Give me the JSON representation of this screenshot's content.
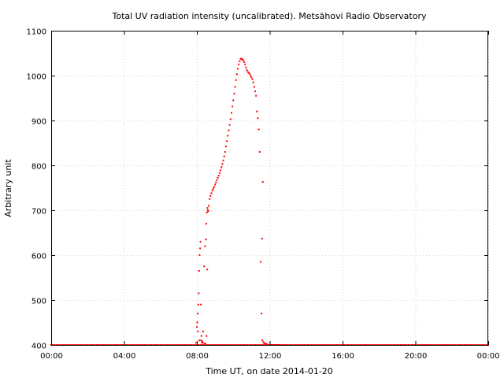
{
  "chart_data": {
    "type": "scatter",
    "title": "Total UV radiation intensity (uncalibrated). Metsähovi Radio Observatory",
    "xlabel": "Time UT, on date 2014-01-20",
    "ylabel": "Arbitrary unit",
    "x_unit": "hours UT",
    "xlim": [
      0,
      24
    ],
    "ylim": [
      400,
      1100
    ],
    "x_ticks": [
      {
        "value": 0,
        "label": "00:00"
      },
      {
        "value": 4,
        "label": "04:00"
      },
      {
        "value": 8,
        "label": "08:00"
      },
      {
        "value": 12,
        "label": "12:00"
      },
      {
        "value": 16,
        "label": "16:00"
      },
      {
        "value": 20,
        "label": "20:00"
      },
      {
        "value": 24,
        "label": "00:00"
      }
    ],
    "y_ticks": [
      {
        "value": 400,
        "label": "400"
      },
      {
        "value": 500,
        "label": "500"
      },
      {
        "value": 600,
        "label": "600"
      },
      {
        "value": 700,
        "label": "700"
      },
      {
        "value": 800,
        "label": "800"
      },
      {
        "value": 900,
        "label": "900"
      },
      {
        "value": 1000,
        "label": "1000"
      },
      {
        "value": 1100,
        "label": "1100"
      }
    ],
    "grid": true,
    "marker_color": "#ff0000",
    "baseline": {
      "y": 400,
      "x_start": 0,
      "x_end": 24,
      "step": 0.1
    },
    "series": [
      {
        "x": [
          7.95,
          8.0,
          8.05,
          8.08,
          8.1,
          8.12,
          8.15,
          8.18,
          8.2,
          8.22,
          8.25,
          8.28,
          8.3,
          8.35,
          8.4,
          8.45,
          8.5,
          8.52,
          8.55,
          8.58,
          8.6,
          8.62,
          8.65,
          8.7,
          8.75,
          8.8,
          8.85,
          8.9,
          8.95,
          9.0,
          9.05,
          9.1,
          9.15,
          9.2,
          9.25,
          9.3,
          9.35,
          9.4,
          9.45,
          9.5,
          9.55,
          9.6,
          9.65,
          9.7,
          9.75,
          9.8,
          9.85,
          9.9,
          9.95,
          10.0,
          10.05,
          10.1,
          10.15,
          10.2,
          10.25,
          10.3,
          10.35,
          10.4,
          10.45,
          10.5,
          10.55,
          10.6,
          10.65,
          10.7,
          10.75,
          10.8,
          10.85,
          10.9,
          10.95,
          11.0,
          11.05,
          11.1,
          11.15,
          11.2,
          11.25,
          11.3,
          11.35,
          11.4,
          11.45,
          11.5,
          11.55,
          11.6,
          11.65,
          11.7,
          11.75,
          11.8,
          11.85,
          11.9,
          11.95,
          12.0,
          12.05,
          12.1,
          12.15,
          12.2,
          12.25,
          12.3,
          12.32,
          12.35,
          12.38,
          12.4,
          12.42,
          12.45,
          12.5,
          12.55,
          12.6,
          11.62,
          11.58,
          8.02,
          8.06,
          8.14,
          8.24,
          8.32,
          8.42,
          8.48,
          8.53,
          8.57
        ],
        "y": [
          405,
          440,
          470,
          490,
          515,
          565,
          600,
          615,
          630,
          490,
          420,
          405,
          408,
          430,
          575,
          620,
          635,
          670,
          695,
          705,
          700,
          698,
          710,
          725,
          732,
          738,
          744,
          748,
          752,
          757,
          762,
          767,
          772,
          777,
          783,
          789,
          796,
          803,
          811,
          820,
          830,
          842,
          854,
          866,
          878,
          890,
          903,
          917,
          931,
          945,
          960,
          975,
          990,
          1003,
          1015,
          1025,
          1032,
          1037,
          1038,
          1036,
          1034,
          1030,
          1025,
          1018,
          1012,
          1008,
          1006,
          1004,
          1000,
          996,
          992,
          985,
          975,
          965,
          955,
          920,
          905,
          880,
          830,
          585,
          470,
          410,
          406,
          404,
          403,
          402,
          401,
          401,
          400,
          400,
          400,
          400,
          400,
          400,
          400,
          400,
          400,
          400,
          400,
          400,
          400,
          400,
          400,
          400,
          400,
          763,
          637,
          450,
          430,
          410,
          410,
          405,
          403,
          402,
          420,
          568
        ]
      }
    ]
  }
}
